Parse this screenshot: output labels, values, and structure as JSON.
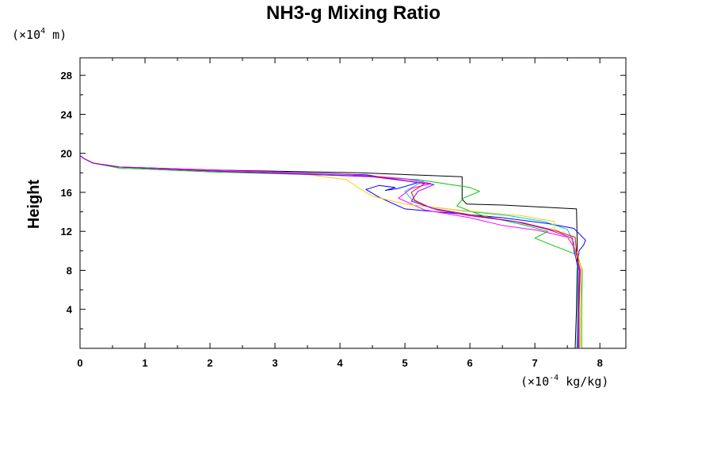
{
  "chart_data": {
    "type": "line",
    "title": "NH3-g Mixing Ratio",
    "xlabel": "",
    "ylabel": "Height",
    "x_unit": {
      "prefix": "(×10",
      "exponent": "-4",
      "suffix": " kg/kg)"
    },
    "y_unit": {
      "prefix": "(×10",
      "exponent": "4",
      "suffix": " m)"
    },
    "xlim": [
      0,
      8.4
    ],
    "ylim": [
      0,
      29.8
    ],
    "x_ticks": [
      0,
      1,
      2,
      3,
      4,
      5,
      6,
      7,
      8
    ],
    "x_tick_labels": [
      "0",
      "1",
      "2",
      "3",
      "4",
      "5",
      "6",
      "7",
      "8"
    ],
    "y_ticks": [
      4,
      8,
      12,
      16,
      20,
      24,
      28
    ],
    "y_tick_labels": [
      "4",
      "8",
      "12",
      "16",
      "20",
      "24",
      "28"
    ],
    "grid": false,
    "legend": "none",
    "series": [
      {
        "color": "#000000",
        "points": [
          [
            7.62,
            0
          ],
          [
            7.64,
            4
          ],
          [
            7.65,
            8
          ],
          [
            7.65,
            11.2
          ],
          [
            7.64,
            14.3
          ],
          [
            6.5,
            14.7
          ],
          [
            5.95,
            14.8
          ],
          [
            5.88,
            15.3
          ],
          [
            5.88,
            17.6
          ],
          [
            4.3,
            18.0
          ],
          [
            2,
            18.3
          ],
          [
            0.6,
            18.6
          ],
          [
            0.2,
            19
          ],
          [
            0.05,
            19.5
          ],
          [
            0,
            19.8
          ],
          [
            0,
            29.8
          ]
        ]
      },
      {
        "color": "#0000ff",
        "points": [
          [
            7.65,
            0
          ],
          [
            7.66,
            4
          ],
          [
            7.66,
            8
          ],
          [
            7.68,
            10
          ],
          [
            7.75,
            10.6
          ],
          [
            7.78,
            11.1
          ],
          [
            7.6,
            12.3
          ],
          [
            7.2,
            12.8
          ],
          [
            6.5,
            13.4
          ],
          [
            5.5,
            14.0
          ],
          [
            5.0,
            14.3
          ],
          [
            4.6,
            15.5
          ],
          [
            4.4,
            16.3
          ],
          [
            4.6,
            16.7
          ],
          [
            4.85,
            16.5
          ],
          [
            4.7,
            16.2
          ],
          [
            4.9,
            16.4
          ],
          [
            5.2,
            17.0
          ],
          [
            4.4,
            17.8
          ],
          [
            2,
            18.2
          ],
          [
            0.6,
            18.6
          ],
          [
            0.2,
            19
          ],
          [
            0.05,
            19.5
          ],
          [
            0,
            19.8
          ]
        ]
      },
      {
        "color": "#00cc00",
        "points": [
          [
            7.72,
            0
          ],
          [
            7.72,
            4
          ],
          [
            7.73,
            8
          ],
          [
            7.65,
            9.6
          ],
          [
            7.3,
            10.5
          ],
          [
            7.0,
            11.3
          ],
          [
            7.2,
            12
          ],
          [
            6.8,
            12.7
          ],
          [
            6.2,
            13.6
          ],
          [
            5.8,
            14.6
          ],
          [
            5.9,
            15.4
          ],
          [
            6.15,
            16.1
          ],
          [
            6.0,
            16.5
          ],
          [
            5.7,
            16.8
          ],
          [
            5.2,
            17.3
          ],
          [
            4.2,
            17.7
          ],
          [
            2,
            18.1
          ],
          [
            0.6,
            18.5
          ],
          [
            0.2,
            19
          ],
          [
            0.05,
            19.5
          ],
          [
            0,
            19.8
          ]
        ]
      },
      {
        "color": "#00cccc",
        "points": [
          [
            7.66,
            0
          ],
          [
            7.66,
            4
          ],
          [
            7.66,
            8
          ],
          [
            7.62,
            9.8
          ],
          [
            7.6,
            10.8
          ],
          [
            7.5,
            12.2
          ],
          [
            7.15,
            13.0
          ],
          [
            6.6,
            13.6
          ],
          [
            5.9,
            14.1
          ],
          [
            5.3,
            14.6
          ],
          [
            5.1,
            15.3
          ],
          [
            5.0,
            16.1
          ],
          [
            5.3,
            17.2
          ],
          [
            4.2,
            17.8
          ],
          [
            2,
            18.2
          ],
          [
            0.6,
            18.6
          ],
          [
            0.2,
            19
          ],
          [
            0.05,
            19.5
          ],
          [
            0,
            19.8
          ]
        ]
      },
      {
        "color": "#ff00ff",
        "points": [
          [
            7.68,
            0
          ],
          [
            7.68,
            4
          ],
          [
            7.7,
            8
          ],
          [
            7.62,
            10.2
          ],
          [
            7.5,
            11.4
          ],
          [
            7.05,
            12.1
          ],
          [
            6.5,
            12.6
          ],
          [
            6.0,
            13.4
          ],
          [
            5.3,
            14.2
          ],
          [
            4.9,
            15.4
          ],
          [
            5.1,
            16.4
          ],
          [
            5.4,
            16.9
          ],
          [
            5.0,
            17.4
          ],
          [
            4.0,
            17.9
          ],
          [
            2,
            18.3
          ],
          [
            0.6,
            18.6
          ],
          [
            0.2,
            19
          ],
          [
            0.05,
            19.5
          ],
          [
            0,
            19.8
          ]
        ]
      },
      {
        "color": "#ffcc00",
        "points": [
          [
            7.7,
            0
          ],
          [
            7.7,
            4
          ],
          [
            7.72,
            8
          ],
          [
            7.66,
            9.7
          ],
          [
            7.55,
            11.2
          ],
          [
            7.3,
            12.3
          ],
          [
            7.3,
            13.0
          ],
          [
            6.8,
            13.6
          ],
          [
            5.8,
            14.2
          ],
          [
            5.0,
            14.8
          ],
          [
            4.5,
            15.6
          ],
          [
            4.3,
            16.4
          ],
          [
            4.1,
            17.3
          ],
          [
            3.4,
            17.9
          ],
          [
            2,
            18.2
          ],
          [
            0.6,
            18.6
          ],
          [
            0.2,
            19
          ],
          [
            0.05,
            19.5
          ],
          [
            0,
            19.8
          ]
        ]
      },
      {
        "color": "#ff0000",
        "points": [
          [
            7.68,
            0
          ],
          [
            7.68,
            4
          ],
          [
            7.69,
            8
          ],
          [
            7.64,
            9.9
          ],
          [
            7.62,
            11.4
          ],
          [
            7.3,
            12.1
          ],
          [
            6.8,
            12.9
          ],
          [
            6.0,
            13.7
          ],
          [
            5.4,
            14.4
          ],
          [
            5.15,
            15.2
          ],
          [
            5.1,
            16.0
          ],
          [
            5.3,
            16.9
          ],
          [
            4.6,
            17.6
          ],
          [
            2,
            18.2
          ],
          [
            0.6,
            18.6
          ],
          [
            0.2,
            19
          ],
          [
            0.05,
            19.5
          ],
          [
            0,
            19.8
          ]
        ]
      },
      {
        "color": "#8800ff",
        "points": [
          [
            7.67,
            0
          ],
          [
            7.67,
            4
          ],
          [
            7.68,
            8
          ],
          [
            7.6,
            10.0
          ],
          [
            7.58,
            11.3
          ],
          [
            7.2,
            12.2
          ],
          [
            6.7,
            13.0
          ],
          [
            6.0,
            13.6
          ],
          [
            5.5,
            14.2
          ],
          [
            5.1,
            15.1
          ],
          [
            5.2,
            16.1
          ],
          [
            5.45,
            16.8
          ],
          [
            4.5,
            17.6
          ],
          [
            2,
            18.2
          ],
          [
            0.6,
            18.6
          ],
          [
            0.2,
            19
          ],
          [
            0.05,
            19.5
          ],
          [
            0,
            19.8
          ]
        ]
      }
    ]
  }
}
